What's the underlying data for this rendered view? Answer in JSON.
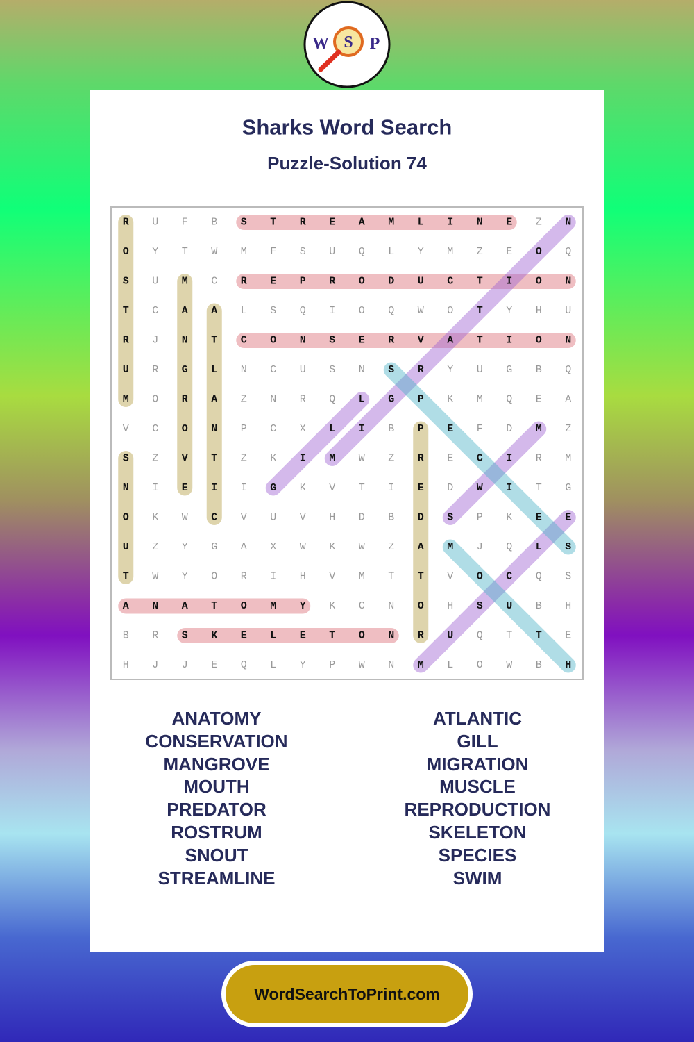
{
  "header": {
    "logo": [
      "W",
      "S",
      "P"
    ],
    "title": "Sharks Word Search",
    "subtitle": "Puzzle-Solution 74"
  },
  "grid": {
    "rows": [
      [
        "R",
        "U",
        "F",
        "B",
        "S",
        "T",
        "R",
        "E",
        "A",
        "M",
        "L",
        "I",
        "N",
        "E",
        "Z",
        "N"
      ],
      [
        "O",
        "Y",
        "T",
        "W",
        "M",
        "F",
        "S",
        "U",
        "Q",
        "L",
        "Y",
        "M",
        "Z",
        "E",
        "O",
        "Q"
      ],
      [
        "S",
        "U",
        "M",
        "C",
        "R",
        "E",
        "P",
        "R",
        "O",
        "D",
        "U",
        "C",
        "T",
        "I",
        "O",
        "N"
      ],
      [
        "T",
        "C",
        "A",
        "A",
        "L",
        "S",
        "Q",
        "I",
        "O",
        "Q",
        "W",
        "O",
        "T",
        "Y",
        "H",
        "U"
      ],
      [
        "R",
        "J",
        "N",
        "T",
        "C",
        "O",
        "N",
        "S",
        "E",
        "R",
        "V",
        "A",
        "T",
        "I",
        "O",
        "N"
      ],
      [
        "U",
        "R",
        "G",
        "L",
        "N",
        "C",
        "U",
        "S",
        "N",
        "S",
        "R",
        "Y",
        "U",
        "G",
        "B",
        "Q"
      ],
      [
        "M",
        "O",
        "R",
        "A",
        "Z",
        "N",
        "R",
        "Q",
        "L",
        "G",
        "P",
        "K",
        "M",
        "Q",
        "E",
        "A"
      ],
      [
        "V",
        "C",
        "O",
        "N",
        "P",
        "C",
        "X",
        "L",
        "I",
        "B",
        "P",
        "E",
        "F",
        "D",
        "M",
        "Z"
      ],
      [
        "S",
        "Z",
        "V",
        "T",
        "Z",
        "K",
        "I",
        "M",
        "W",
        "Z",
        "R",
        "E",
        "C",
        "I",
        "R",
        "M"
      ],
      [
        "N",
        "I",
        "E",
        "I",
        "I",
        "G",
        "K",
        "V",
        "T",
        "I",
        "E",
        "D",
        "W",
        "I",
        "T",
        "G"
      ],
      [
        "O",
        "K",
        "W",
        "C",
        "V",
        "U",
        "V",
        "H",
        "D",
        "B",
        "D",
        "S",
        "P",
        "K",
        "E",
        "E"
      ],
      [
        "U",
        "Z",
        "Y",
        "G",
        "A",
        "X",
        "W",
        "K",
        "W",
        "Z",
        "A",
        "M",
        "J",
        "Q",
        "L",
        "S"
      ],
      [
        "T",
        "W",
        "Y",
        "O",
        "R",
        "I",
        "H",
        "V",
        "M",
        "T",
        "T",
        "V",
        "O",
        "C",
        "Q",
        "S"
      ],
      [
        "A",
        "N",
        "A",
        "T",
        "O",
        "M",
        "Y",
        "K",
        "C",
        "N",
        "O",
        "H",
        "S",
        "U",
        "B",
        "H"
      ],
      [
        "B",
        "R",
        "S",
        "K",
        "E",
        "L",
        "E",
        "T",
        "O",
        "N",
        "R",
        "U",
        "Q",
        "T",
        "T",
        "E"
      ],
      [
        "H",
        "J",
        "J",
        "E",
        "Q",
        "L",
        "Y",
        "P",
        "W",
        "N",
        "M",
        "L",
        "O",
        "W",
        "B",
        "H"
      ]
    ]
  },
  "word_list": {
    "left": [
      "ANATOMY",
      "CONSERVATION",
      "MANGROVE",
      "MOUTH",
      "PREDATOR",
      "ROSTRUM",
      "SNOUT",
      "STREAMLINE"
    ],
    "right": [
      "ATLANTIC",
      "GILL",
      "MIGRATION",
      "MUSCLE",
      "REPRODUCTION",
      "SKELETON",
      "SPECIES",
      "SWIM"
    ]
  },
  "footer": {
    "site": "WordSearchToPrint.com"
  }
}
